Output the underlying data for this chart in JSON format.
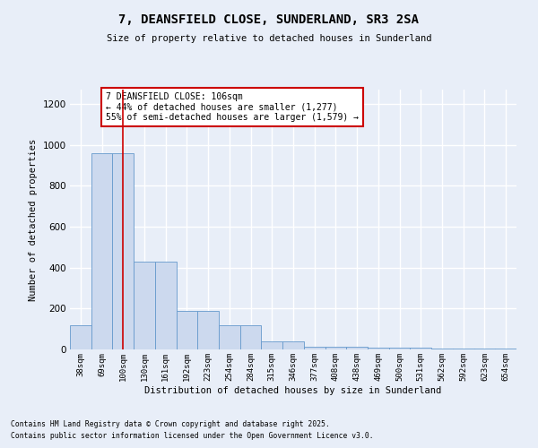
{
  "title_line1": "7, DEANSFIELD CLOSE, SUNDERLAND, SR3 2SA",
  "title_line2": "Size of property relative to detached houses in Sunderland",
  "xlabel": "Distribution of detached houses by size in Sunderland",
  "ylabel": "Number of detached properties",
  "categories": [
    "38sqm",
    "69sqm",
    "100sqm",
    "130sqm",
    "161sqm",
    "192sqm",
    "223sqm",
    "254sqm",
    "284sqm",
    "315sqm",
    "346sqm",
    "377sqm",
    "408sqm",
    "438sqm",
    "469sqm",
    "500sqm",
    "531sqm",
    "562sqm",
    "592sqm",
    "623sqm",
    "654sqm"
  ],
  "values": [
    120,
    960,
    960,
    430,
    430,
    190,
    190,
    120,
    120,
    40,
    40,
    15,
    15,
    15,
    10,
    10,
    10,
    5,
    5,
    5,
    5
  ],
  "bar_color": "#ccd9ee",
  "bar_edge_color": "#6699cc",
  "background_color": "#e8eef8",
  "grid_color": "#ffffff",
  "vline_x": 2,
  "vline_color": "#cc0000",
  "annotation_text": "7 DEANSFIELD CLOSE: 106sqm\n← 44% of detached houses are smaller (1,277)\n55% of semi-detached houses are larger (1,579) →",
  "annotation_box_facecolor": "#ffffff",
  "annotation_box_edgecolor": "#cc0000",
  "ylim": [
    0,
    1270
  ],
  "yticks": [
    0,
    200,
    400,
    600,
    800,
    1000,
    1200
  ],
  "footnote1": "Contains HM Land Registry data © Crown copyright and database right 2025.",
  "footnote2": "Contains public sector information licensed under the Open Government Licence v3.0."
}
